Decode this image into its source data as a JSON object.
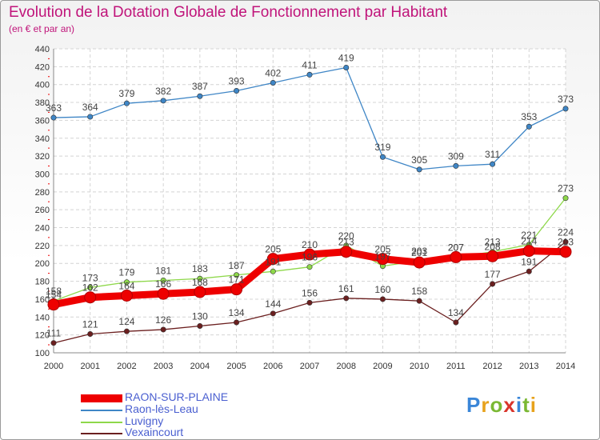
{
  "header": {
    "title": "Evolution de la Dotation Globale de Fonctionnement par Habitant",
    "subtitle": "(en € et par an)"
  },
  "logo": {
    "text": "Proxiti",
    "colors": [
      "#3a86d8",
      "#e7a21c",
      "#7ab833",
      "#d9342b",
      "#3a86d8",
      "#7ab833",
      "#e7a21c"
    ]
  },
  "chart_data": {
    "type": "line",
    "title": "Evolution de la Dotation Globale de Fonctionnement par Habitant",
    "subtitle": "(en € et par an)",
    "x": [
      "2000",
      "2001",
      "2002",
      "2003",
      "2004",
      "2005",
      "2006",
      "2007",
      "2008",
      "2009",
      "2010",
      "2011",
      "2012",
      "2013",
      "2014"
    ],
    "ylim": [
      100,
      440
    ],
    "yticks": [
      100,
      120,
      140,
      160,
      180,
      200,
      220,
      240,
      260,
      280,
      300,
      320,
      340,
      360,
      380,
      400,
      420,
      440
    ],
    "grid": true,
    "series": [
      {
        "name": "RAON-SUR-PLAINE",
        "color": "#ee0000",
        "values": [
          154,
          162,
          164,
          166,
          168,
          171,
          205,
          210,
          213,
          205,
          201,
          207,
          208,
          214,
          213
        ],
        "labels": [
          "154",
          "162",
          "164",
          "166",
          "168",
          "171",
          "205",
          "210",
          "213",
          "205",
          "201",
          "207",
          "208",
          "214",
          "213"
        ]
      },
      {
        "name": "Raon-lès-Leau",
        "color": "#3f86c6",
        "values": [
          363,
          364,
          379,
          382,
          387,
          393,
          402,
          411,
          419,
          319,
          305,
          309,
          311,
          353,
          373
        ],
        "labels": [
          "363",
          "364",
          "379",
          "382",
          "387",
          "393",
          "402",
          "411",
          "419",
          "319",
          "305",
          "309",
          "311",
          "353",
          "373"
        ]
      },
      {
        "name": "Luvigny",
        "color": "#8ed84a",
        "values": [
          158,
          173,
          179,
          181,
          183,
          187,
          191,
          196,
          220,
          197,
          203,
          207,
          213,
          221,
          273
        ],
        "labels": [
          "158",
          "173",
          "179",
          "181",
          "183",
          "187",
          "191",
          "196",
          "220",
          "197",
          "203",
          "207",
          "213",
          "221",
          "273"
        ]
      },
      {
        "name": "Vexaincourt",
        "color": "#6b1f1f",
        "values": [
          111,
          121,
          124,
          126,
          130,
          134,
          144,
          156,
          161,
          160,
          158,
          134,
          177,
          191,
          224
        ],
        "labels": [
          "111",
          "121",
          "124",
          "126",
          "130",
          "134",
          "144",
          "156",
          "161",
          "160",
          "158",
          "134",
          "177",
          "191",
          "224"
        ]
      }
    ]
  }
}
